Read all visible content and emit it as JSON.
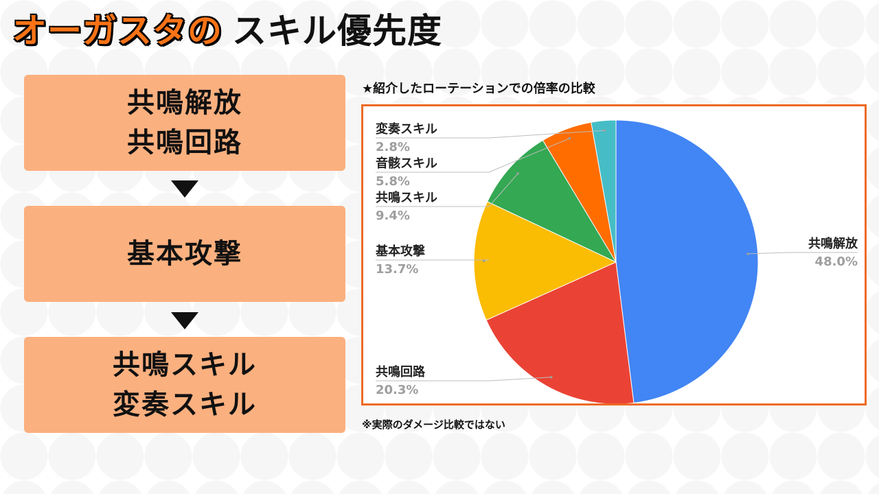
{
  "title": {
    "highlight": "オーガスタの",
    "rest": "スキル優先度"
  },
  "steps": [
    {
      "lines": [
        "共鳴解放",
        "共鳴回路"
      ]
    },
    {
      "lines": [
        "基本攻撃"
      ]
    },
    {
      "lines": [
        "共鳴スキル",
        "変奏スキル"
      ]
    }
  ],
  "chart_caption": "★紹介したローテーションでの倍率の比較",
  "note": "※実際のダメージ比較ではない",
  "colors": {
    "accent": "#f97316",
    "step_bg": "#fbb07f",
    "chart_border": "#ee6a24"
  },
  "chart_data": {
    "type": "pie",
    "title": "",
    "slices": [
      {
        "label": "共鳴解放",
        "value": 48.0,
        "display": "48.0%",
        "color": "#4285f4"
      },
      {
        "label": "共鳴回路",
        "value": 20.3,
        "display": "20.3%",
        "color": "#ea4335"
      },
      {
        "label": "基本攻撃",
        "value": 13.7,
        "display": "13.7%",
        "color": "#fbbc04"
      },
      {
        "label": "共鳴スキル",
        "value": 9.4,
        "display": "9.4%",
        "color": "#34a853"
      },
      {
        "label": "音骸スキル",
        "value": 5.8,
        "display": "5.8%",
        "color": "#ff6d01"
      },
      {
        "label": "変奏スキル",
        "value": 2.8,
        "display": "2.8%",
        "color": "#46bdc6"
      }
    ],
    "start_angle": "12 o'clock",
    "direction": "clockwise",
    "legend": "none"
  }
}
